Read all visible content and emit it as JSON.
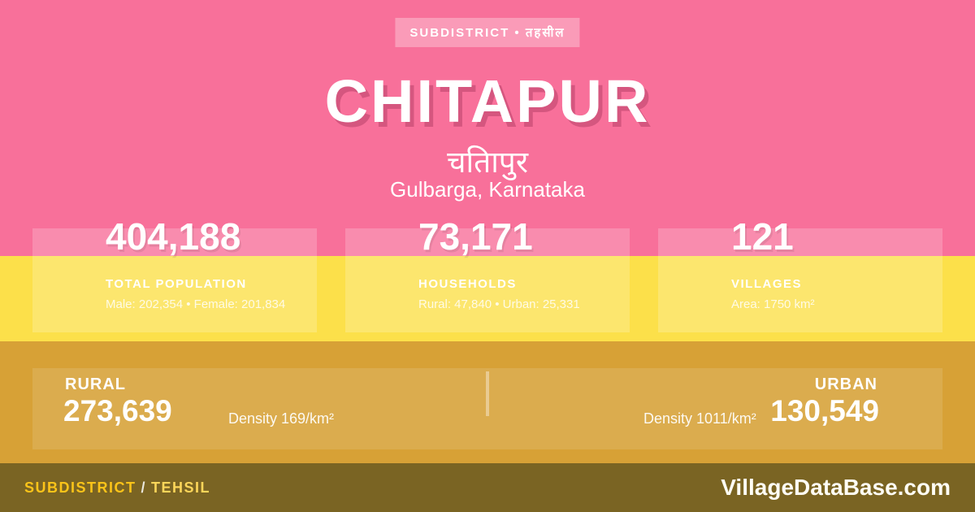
{
  "badge": {
    "label": "SUBDISTRICT • तहसील"
  },
  "header": {
    "title": "CHITAPUR",
    "title_native": "चतिापुर",
    "location": "Gulbarga, Karnataka"
  },
  "stats": [
    {
      "value": "404,188",
      "label": "TOTAL POPULATION",
      "detail": "Male: 202,354 • Female: 201,834"
    },
    {
      "value": "73,171",
      "label": "HOUSEHOLDS",
      "detail": "Rural: 47,840 • Urban: 25,331"
    },
    {
      "value": "121",
      "label": "VILLAGES",
      "detail": "Area: 1750 km²"
    }
  ],
  "rural_urban": {
    "rural": {
      "label": "RURAL",
      "value": "273,639",
      "density": "Density 169/km²"
    },
    "urban": {
      "label": "URBAN",
      "value": "130,549",
      "density": "Density 1011/km²"
    }
  },
  "footer": {
    "type_label": "SUBDISTRICT",
    "type_separator": "/",
    "type_alt": "TEHSIL",
    "site": "VillageDataBase.com"
  },
  "colors": {
    "pink_background": "#f8709a",
    "yellow_band": "#fce04a",
    "gold_band": "#d7a136",
    "olive_footer": "#7a6423",
    "footer_accent_yellow": "#fcc419",
    "text": "#ffffff"
  }
}
